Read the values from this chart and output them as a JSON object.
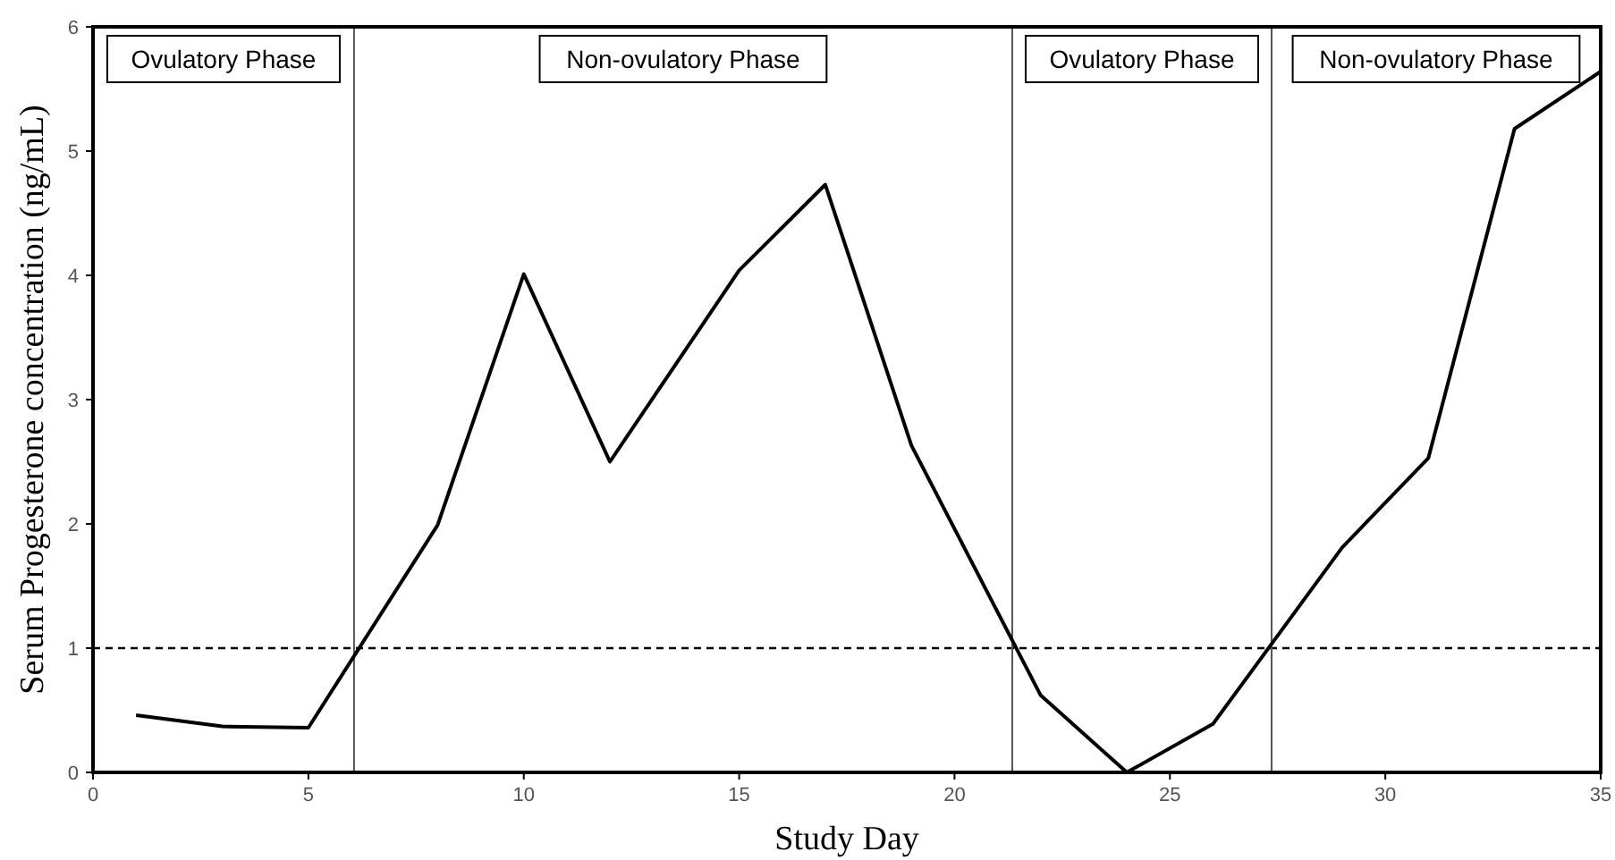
{
  "chart_data": {
    "type": "line",
    "xlabel": "Study Day",
    "ylabel": "Serum Progesterone concentration (ng/mL)",
    "x": [
      1,
      3,
      5,
      8,
      10,
      12,
      15,
      17,
      19,
      22,
      24,
      26,
      29,
      31,
      33,
      35
    ],
    "series": [
      {
        "color": "#000000",
        "values": [
          0.46,
          0.37,
          0.36,
          1.99,
          4.01,
          2.5,
          4.04,
          4.73,
          2.63,
          0.62,
          0,
          0.39,
          1.81,
          2.53,
          5.18,
          5.64
        ]
      }
    ],
    "xlim": [
      0,
      35
    ],
    "xticks": [
      0,
      5,
      10,
      15,
      20,
      25,
      30,
      35
    ],
    "ylim": [
      0,
      6
    ],
    "yticks": [
      0,
      1,
      2,
      3,
      4,
      5,
      6
    ],
    "grid": false,
    "marker": "none",
    "line_style": "solid",
    "ref_lines": [
      {
        "axis": "y",
        "value": 1,
        "line_style": "dashed",
        "color": "#000000"
      },
      {
        "axis": "x",
        "value": 6.06,
        "color": "#555555"
      },
      {
        "axis": "x",
        "value": 21.34,
        "color": "#555555"
      },
      {
        "axis": "x",
        "value": 27.36,
        "color": "#555555"
      }
    ],
    "annotations": [
      "Ovulatory Phase",
      "Non-ovulatory Phase",
      "Ovulatory Phase",
      "Non-ovulatory Phase"
    ]
  }
}
